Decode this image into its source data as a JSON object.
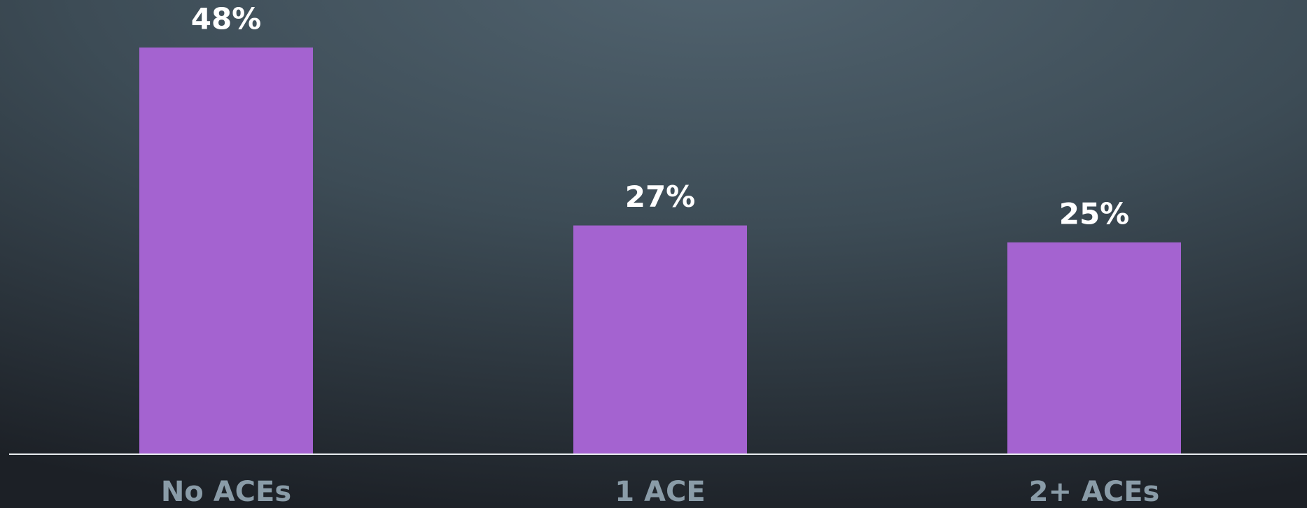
{
  "chart_data": {
    "type": "bar",
    "categories": [
      "No ACEs",
      "1 ACE",
      "2+ ACEs"
    ],
    "values": [
      48,
      27,
      25
    ],
    "value_labels": [
      "48%",
      "27%",
      "25%"
    ],
    "color": "#a463d0",
    "ylim": [
      0,
      48
    ]
  }
}
